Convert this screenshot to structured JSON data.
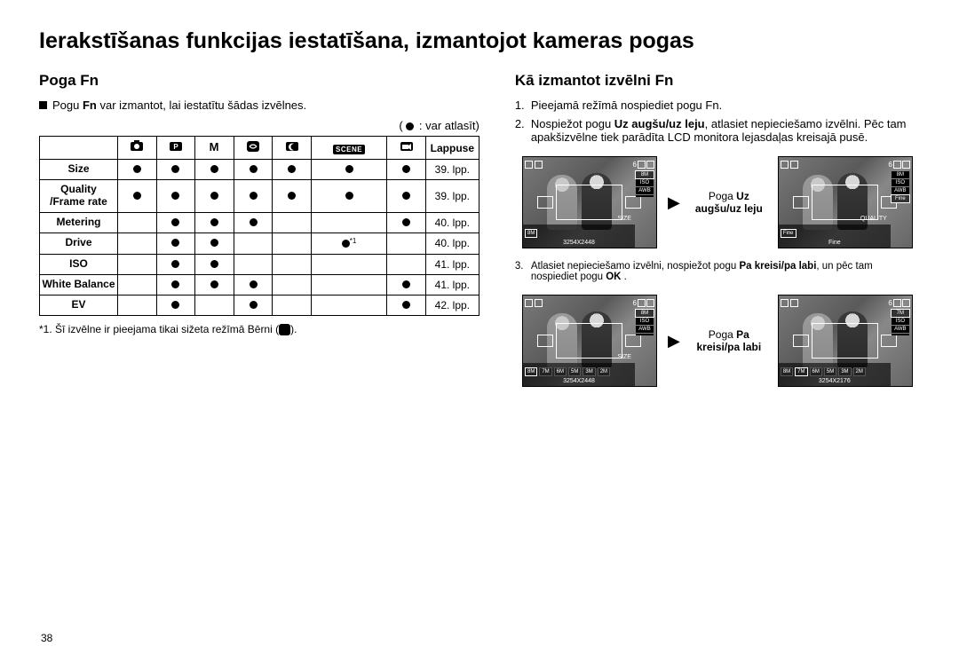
{
  "page_number": "38",
  "main_title": "Ierakstīšanas funkcijas iestatīšana, izmantojot kameras pogas",
  "left": {
    "section_title": "Poga Fn",
    "intro_prefix": "Pogu ",
    "intro_bold": "Fn",
    "intro_rest": " var izmantot, lai iestatītu šādas izvēlnes.",
    "legend": " : var atlasīt)",
    "legend_open": "( ",
    "table": {
      "last_header": "Lappuse",
      "mode_icons": [
        "auto",
        "program",
        "manual",
        "asr",
        "night",
        "scene",
        "movie"
      ],
      "rows": [
        {
          "label": "Size",
          "dots": [
            1,
            1,
            1,
            1,
            1,
            1,
            1
          ],
          "page": "39. lpp."
        },
        {
          "label": "Quality\n/Frame rate",
          "dots": [
            1,
            1,
            1,
            1,
            1,
            1,
            1
          ],
          "page": "39. lpp."
        },
        {
          "label": "Metering",
          "dots": [
            0,
            1,
            1,
            1,
            0,
            0,
            1
          ],
          "page": "40. lpp."
        },
        {
          "label": "Drive",
          "dots": [
            0,
            1,
            1,
            0,
            0,
            2,
            0
          ],
          "page": "40. lpp."
        },
        {
          "label": "ISO",
          "dots": [
            0,
            1,
            1,
            0,
            0,
            0,
            0
          ],
          "page": "41. lpp."
        },
        {
          "label": "White Balance",
          "dots": [
            0,
            1,
            1,
            1,
            0,
            0,
            1
          ],
          "page": "41. lpp."
        },
        {
          "label": "EV",
          "dots": [
            0,
            1,
            0,
            1,
            0,
            0,
            1
          ],
          "page": "42. lpp."
        }
      ]
    },
    "footnote": "*1. Šī izvēlne ir pieejama tikai sižeta režīmā Bērni ("
  },
  "right": {
    "section_title": "Kā izmantot izvēlni Fn",
    "steps": [
      {
        "n": "1.",
        "text": "Pieejamā režīmā nospiediet pogu Fn."
      },
      {
        "n": "2.",
        "parts": [
          "Nospiežot pogu ",
          "Uz augšu/uz leju",
          ", atlasiet nepieciešamo izvēlni. Pēc tam apakšizvēlne tiek parādīta LCD monitora lejasdaļas kreisajā pusē."
        ]
      }
    ],
    "step3": {
      "n": "3.",
      "parts": [
        "Atlasiet nepieciešamo izvēlni, nospiežot pogu ",
        "Pa kreisi/pa labi",
        ", un pēc tam nospiediet pogu ",
        "OK",
        " ."
      ]
    },
    "mid1": {
      "line1": "Poga ",
      "bold1": "Uz",
      "line2": "augšu/uz leju"
    },
    "mid2": {
      "line1": "Poga ",
      "bold1": "Pa",
      "line2": "kreisi/pa labi"
    },
    "lcd": {
      "count": "6",
      "right_chips_a": [
        "8M",
        "ISO",
        "AWB",
        ""
      ],
      "right_chips_b": [
        "8M",
        "ISO",
        "AWB",
        "Fine"
      ],
      "size_label": "SIZE",
      "quality_label": "QUALITY",
      "bottom_opts1": [
        "8M",
        "7M",
        "6M",
        "5M",
        "3M",
        "2M"
      ],
      "res1": "3254X2448",
      "res2": "3254X2448",
      "res3": "3254X2176"
    }
  }
}
